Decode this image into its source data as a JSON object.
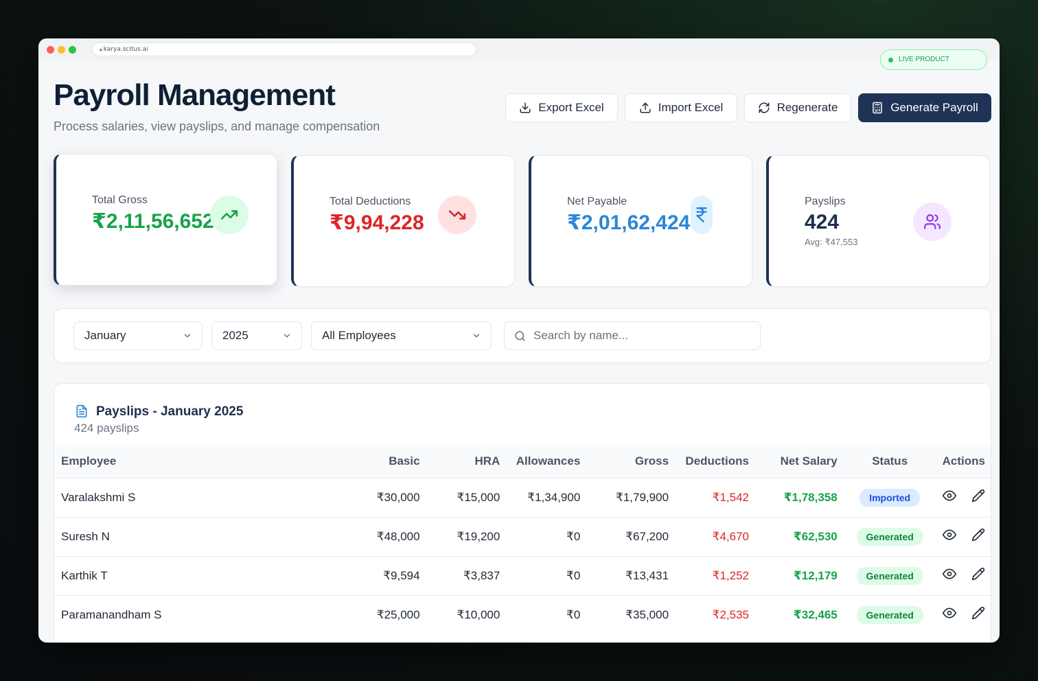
{
  "browser": {
    "url": "karya.scitus.ai",
    "live_badge": "LIVE PRODUCT"
  },
  "header": {
    "title": "Payroll Management",
    "subtitle": "Process salaries, view payslips, and manage compensation",
    "actions": {
      "export": "Export Excel",
      "import": "Import Excel",
      "regenerate": "Regenerate",
      "generate": "Generate Payroll"
    }
  },
  "stats": {
    "gross": {
      "label": "Total Gross",
      "value": "₹2,11,56,652",
      "color": "#16a34a",
      "icon": "trending-up-icon"
    },
    "deductions": {
      "label": "Total Deductions",
      "value": "₹9,94,228",
      "color": "#dc2626",
      "icon": "trending-down-icon"
    },
    "net": {
      "label": "Net Payable",
      "value": "₹2,01,62,424",
      "color": "#2b86d8",
      "icon": "rupee-icon"
    },
    "payslips": {
      "label": "Payslips",
      "value": "424",
      "sub": "Avg: ₹47,553",
      "color": "#1e2f4d",
      "icon": "users-icon"
    }
  },
  "filters": {
    "month": "January",
    "year": "2025",
    "employees": "All Employees",
    "search_placeholder": "Search by name..."
  },
  "table": {
    "title": "Payslips - January 2025",
    "count": "424 payslips",
    "columns": [
      "Employee",
      "Basic",
      "HRA",
      "Allowances",
      "Gross",
      "Deductions",
      "Net Salary",
      "Status",
      "Actions"
    ],
    "rows": [
      {
        "employee": "Varalakshmi S",
        "basic": "₹30,000",
        "hra": "₹15,000",
        "allowances": "₹1,34,900",
        "gross": "₹1,79,900",
        "deductions": "₹1,542",
        "net": "₹1,78,358",
        "status": "Imported"
      },
      {
        "employee": "Suresh N",
        "basic": "₹48,000",
        "hra": "₹19,200",
        "allowances": "₹0",
        "gross": "₹67,200",
        "deductions": "₹4,670",
        "net": "₹62,530",
        "status": "Generated"
      },
      {
        "employee": "Karthik T",
        "basic": "₹9,594",
        "hra": "₹3,837",
        "allowances": "₹0",
        "gross": "₹13,431",
        "deductions": "₹1,252",
        "net": "₹12,179",
        "status": "Generated"
      },
      {
        "employee": "Paramanandham S",
        "basic": "₹25,000",
        "hra": "₹10,000",
        "allowances": "₹0",
        "gross": "₹35,000",
        "deductions": "₹2,535",
        "net": "₹32,465",
        "status": "Generated"
      }
    ]
  }
}
